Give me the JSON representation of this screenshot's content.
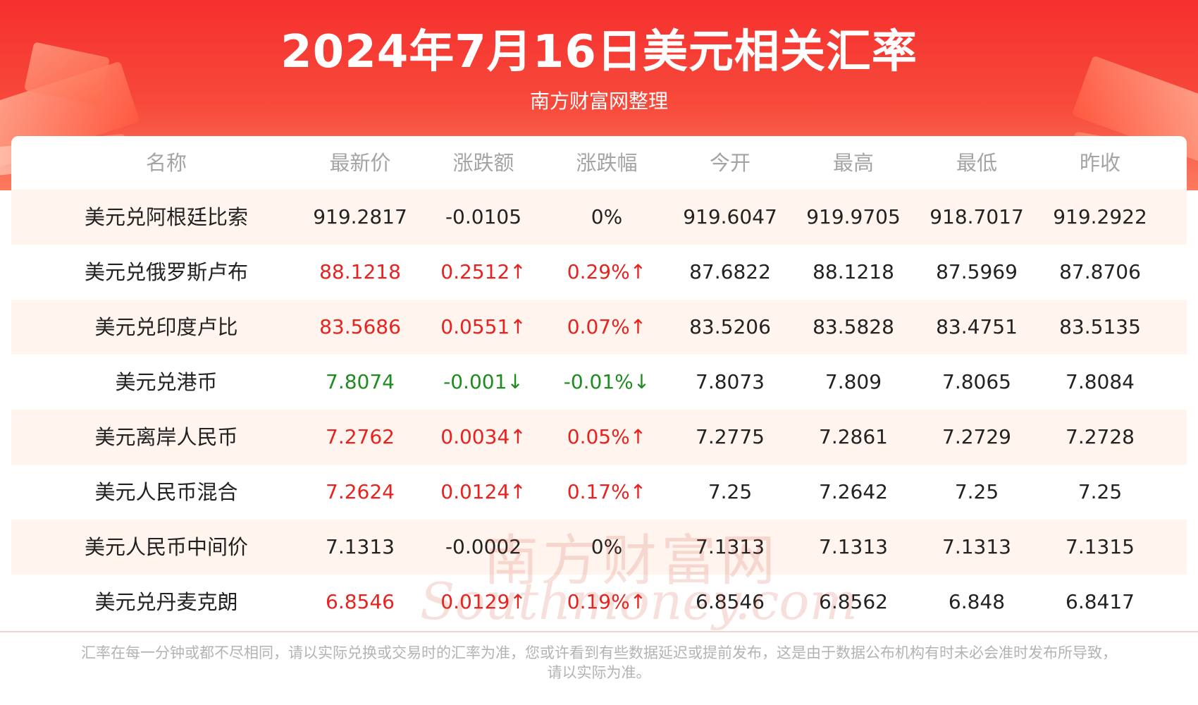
{
  "header": {
    "title": "2024年7月16日美元相关汇率",
    "subtitle": "南方财富网整理"
  },
  "table": {
    "columns": [
      "名称",
      "最新价",
      "涨跌额",
      "涨跌幅",
      "今开",
      "最高",
      "最低",
      "昨收"
    ],
    "rows": [
      {
        "name": "美元兑阿根廷比索",
        "price": "919.2817",
        "change": "-0.0105",
        "pct": "0%",
        "open": "919.6047",
        "high": "919.9705",
        "low": "918.7017",
        "prev_close": "919.2922",
        "trend": "flat"
      },
      {
        "name": "美元兑俄罗斯卢布",
        "price": "88.1218",
        "change": "0.2512↑",
        "pct": "0.29%↑",
        "open": "87.6822",
        "high": "88.1218",
        "low": "87.5969",
        "prev_close": "87.8706",
        "trend": "up"
      },
      {
        "name": "美元兑印度卢比",
        "price": "83.5686",
        "change": "0.0551↑",
        "pct": "0.07%↑",
        "open": "83.5206",
        "high": "83.5828",
        "low": "83.4751",
        "prev_close": "83.5135",
        "trend": "up"
      },
      {
        "name": "美元兑港币",
        "price": "7.8074",
        "change": "-0.001↓",
        "pct": "-0.01%↓",
        "open": "7.8073",
        "high": "7.809",
        "low": "7.8065",
        "prev_close": "7.8084",
        "trend": "down"
      },
      {
        "name": "美元离岸人民币",
        "price": "7.2762",
        "change": "0.0034↑",
        "pct": "0.05%↑",
        "open": "7.2775",
        "high": "7.2861",
        "low": "7.2729",
        "prev_close": "7.2728",
        "trend": "up"
      },
      {
        "name": "美元人民币混合",
        "price": "7.2624",
        "change": "0.0124↑",
        "pct": "0.17%↑",
        "open": "7.25",
        "high": "7.2642",
        "low": "7.25",
        "prev_close": "7.25",
        "trend": "up"
      },
      {
        "name": "美元人民币中间价",
        "price": "7.1313",
        "change": "-0.0002",
        "pct": "0%",
        "open": "7.1313",
        "high": "7.1313",
        "low": "7.1313",
        "prev_close": "7.1315",
        "trend": "flat"
      },
      {
        "name": "美元兑丹麦克朗",
        "price": "6.8546",
        "change": "0.0129↑",
        "pct": "0.19%↑",
        "open": "6.8546",
        "high": "6.8562",
        "low": "6.848",
        "prev_close": "6.8417",
        "trend": "up"
      }
    ]
  },
  "watermark": {
    "cn": "南方财富网",
    "en": "Southmoney.com"
  },
  "footnote": {
    "line1": "汇率在每一分钟或都不尽相同，请以实际兑换或交易时的汇率为准，您或许看到有些数据延迟或提前发布，这是由于数据公布机构有时未必会准时发布所导致，",
    "line2": "请以实际为准。"
  },
  "colors": {
    "header_red": "#f5302e",
    "up": "#e8231f",
    "down": "#1e8c1e",
    "row_alt": "#fff4ee",
    "header_text": "#a4a4a4"
  }
}
